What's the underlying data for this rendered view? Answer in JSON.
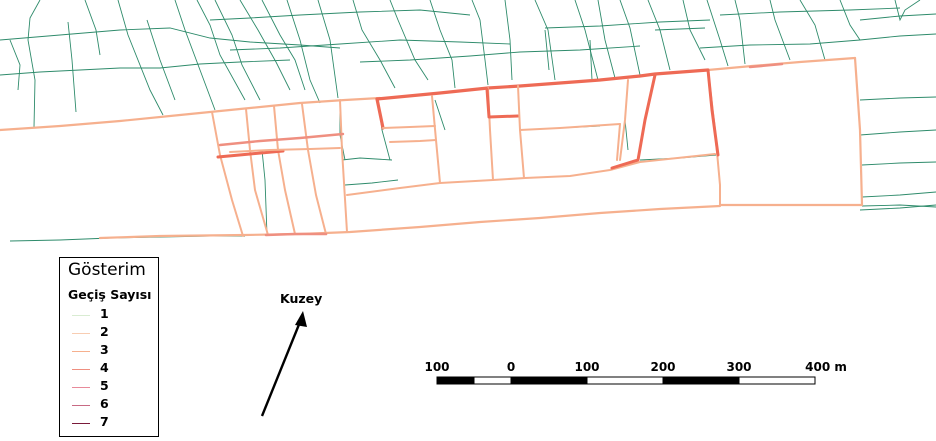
{
  "legend": {
    "title": "Gösterim",
    "subtitle": "Geçiş Sayısı",
    "items": [
      {
        "label": "1",
        "color": "#d9ecd2"
      },
      {
        "label": "2",
        "color": "#f8cdb2"
      },
      {
        "label": "3",
        "color": "#f6b08e"
      },
      {
        "label": "4",
        "color": "#ef8f80"
      },
      {
        "label": "5",
        "color": "#e88a9a"
      },
      {
        "label": "6",
        "color": "#c86a84"
      },
      {
        "label": "7",
        "color": "#7a1a3a"
      }
    ]
  },
  "north_arrow": {
    "label": "Kuzey"
  },
  "scale_bar": {
    "labels": [
      "100",
      "0",
      "100",
      "200",
      "300",
      "400 m"
    ]
  },
  "colors": {
    "network_base": "#2e8b6b",
    "flow_low": "#f6b08e",
    "flow_high": "#ee6a55"
  }
}
